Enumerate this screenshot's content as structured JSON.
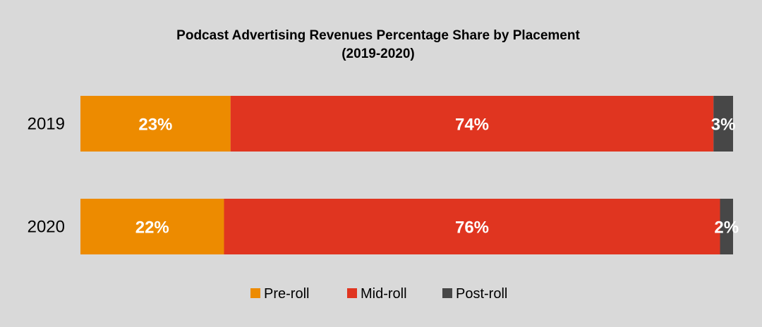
{
  "chart_data": {
    "type": "bar",
    "orientation": "horizontal",
    "stacked": true,
    "title": "Podcast Advertising Revenues Percentage Share by Placement",
    "subtitle": "(2019-2020)",
    "categories": [
      "2019",
      "2020"
    ],
    "series": [
      {
        "name": "Pre-roll",
        "values": [
          23,
          22
        ],
        "labels": [
          "23%",
          "22%"
        ],
        "color": "#ed8b00"
      },
      {
        "name": "Mid-roll",
        "values": [
          74,
          76
        ],
        "labels": [
          "74%",
          "76%"
        ],
        "color": "#e03520"
      },
      {
        "name": "Post-roll",
        "values": [
          3,
          2
        ],
        "labels": [
          "3%",
          "2%"
        ],
        "color": "#474747"
      }
    ],
    "xlim": [
      0,
      100
    ],
    "grid": false,
    "legend": "bottom"
  }
}
